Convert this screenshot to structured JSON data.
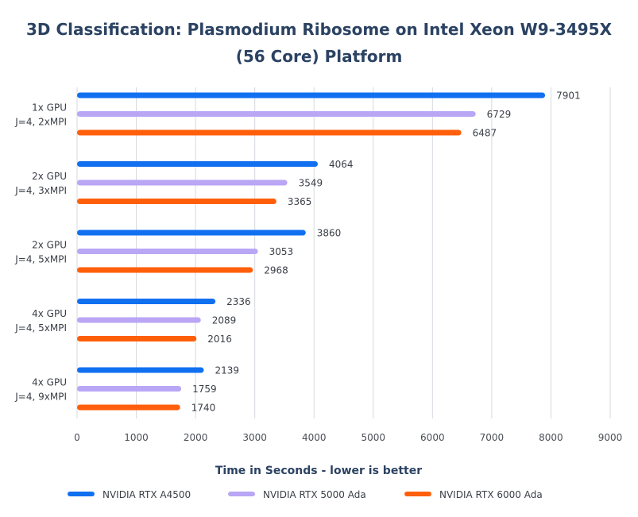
{
  "chart_data": {
    "type": "bar",
    "orientation": "horizontal",
    "title_lines": [
      "3D Classification: Plasmodium Ribosome on Intel Xeon W9-3495X",
      "(56 Core) Platform"
    ],
    "xlabel": "Time in Seconds - lower is better",
    "ylabel": "",
    "xlim": [
      0,
      9000
    ],
    "xticks": [
      0,
      1000,
      2000,
      3000,
      4000,
      5000,
      6000,
      7000,
      8000,
      9000
    ],
    "grid": "vertical",
    "legend_position": "bottom",
    "categories": [
      [
        "1x GPU",
        "J=4, 2xMPI"
      ],
      [
        "2x GPU",
        "J=4, 3xMPI"
      ],
      [
        "2x GPU",
        "J=4, 5xMPI"
      ],
      [
        "4x GPU",
        "J=4, 5xMPI"
      ],
      [
        "4x GPU",
        "J=4, 9xMPI"
      ]
    ],
    "series": [
      {
        "name": "NVIDIA RTX A4500",
        "color": "#1170f0",
        "values": [
          7901,
          4064,
          3860,
          2336,
          2139
        ]
      },
      {
        "name": "NVIDIA RTX 5000 Ada",
        "color": "#b9a6f5",
        "values": [
          6729,
          3549,
          3053,
          2089,
          1759
        ]
      },
      {
        "name": "NVIDIA RTX 6000 Ada",
        "color": "#ff5f0a",
        "values": [
          6487,
          3365,
          2968,
          2016,
          1740
        ]
      }
    ]
  }
}
